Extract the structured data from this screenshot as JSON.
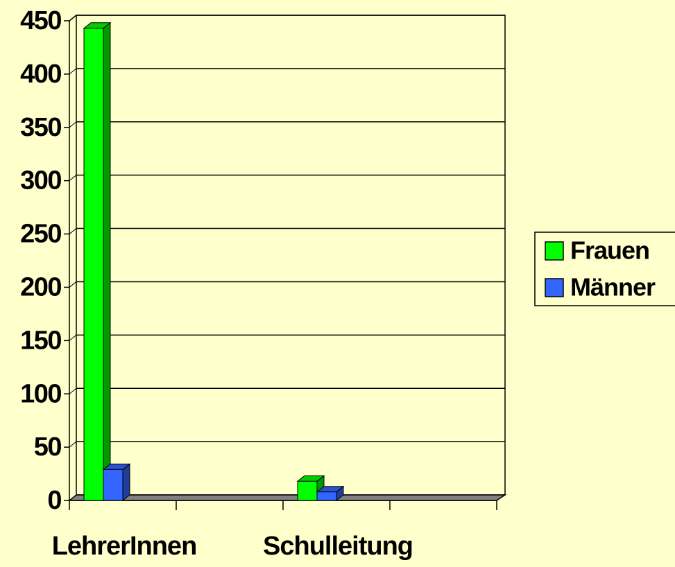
{
  "chart_data": {
    "type": "bar3d",
    "categories": [
      "LehrerInnen",
      null,
      "Schulleitung",
      null
    ],
    "series": [
      {
        "name": "Frauen",
        "color": "#00ff00",
        "values": [
          443,
          null,
          18,
          null
        ]
      },
      {
        "name": "Männer",
        "color": "#3366ff",
        "values": [
          29,
          null,
          8,
          null
        ]
      }
    ],
    "ylim": [
      0,
      450
    ],
    "yticks": [
      0,
      50,
      100,
      150,
      200,
      250,
      300,
      350,
      400,
      450
    ],
    "grid": true,
    "legend": "right"
  }
}
